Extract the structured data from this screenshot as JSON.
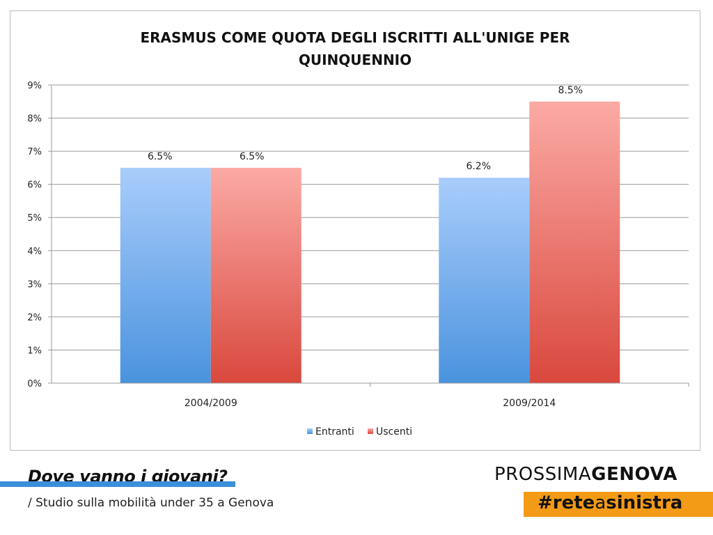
{
  "chart_data": {
    "type": "bar",
    "title_lines": [
      "ERASMUS COME QUOTA DEGLI ISCRITTI ALL'UNIGE PER",
      "QUINQUENNIO"
    ],
    "categories": [
      "2004/2009",
      "2009/2014"
    ],
    "series": [
      {
        "name": "Entranti",
        "values": [
          6.5,
          6.2
        ],
        "data_labels": [
          "6.5%",
          "6.2%"
        ],
        "color_top": "#a9cdfb",
        "color_bottom": "#4a93de"
      },
      {
        "name": "Uscenti",
        "values": [
          6.5,
          8.5
        ],
        "data_labels": [
          "6.5%",
          "8.5%"
        ],
        "color_top": "#fbaaa5",
        "color_bottom": "#d9483d"
      }
    ],
    "ylim": [
      0,
      9
    ],
    "y_ticks": [
      "0%",
      "1%",
      "2%",
      "3%",
      "4%",
      "5%",
      "6%",
      "7%",
      "8%",
      "9%"
    ],
    "grid": true,
    "legend_position": "bottom"
  },
  "footer": {
    "title": "Dove vanno i giovani?",
    "subtitle": "/ Studio sulla mobilità under 35 a Genova"
  },
  "brand": {
    "name_light": "PROSSIMA",
    "name_bold": "GENOVA",
    "hashtag_a": "#rete",
    "hashtag_b": "a",
    "hashtag_c": "sinistra",
    "tag_color": "#f39a16",
    "bar_color": "#3a8fd9"
  }
}
